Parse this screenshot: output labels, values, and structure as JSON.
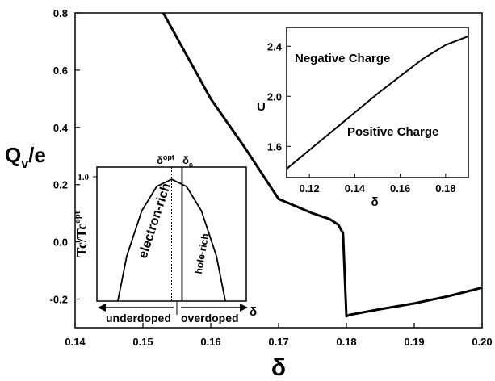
{
  "chart_data": [
    {
      "type": "line",
      "ylabel_main": "Q",
      "ylabel_sub": "v",
      "ylabel_suffix": "/e",
      "xlabel": "δ",
      "xlim": [
        0.14,
        0.2
      ],
      "ylim": [
        -0.3,
        0.8
      ],
      "x_ticks": [
        {
          "value": 0.14,
          "label": "0.14"
        },
        {
          "value": 0.15,
          "label": "0.15"
        },
        {
          "value": 0.16,
          "label": "0.16"
        },
        {
          "value": 0.17,
          "label": "0.17"
        },
        {
          "value": 0.18,
          "label": "0.18"
        },
        {
          "value": 0.19,
          "label": "0.19"
        },
        {
          "value": 0.2,
          "label": "0.20"
        }
      ],
      "y_ticks": [
        {
          "value": -0.2,
          "label": "-0.2"
        },
        {
          "value": 0.0,
          "label": "0.0"
        },
        {
          "value": 0.2,
          "label": "0.2"
        },
        {
          "value": 0.4,
          "label": "0.4"
        },
        {
          "value": 0.6,
          "label": "0.6"
        },
        {
          "value": 0.8,
          "label": "0.8"
        }
      ],
      "series": [
        {
          "x": [
            0.153,
            0.16,
            0.165,
            0.17,
            0.1725,
            0.175,
            0.1775,
            0.1788,
            0.1795,
            0.18,
            0.1805,
            0.185,
            0.19,
            0.195,
            0.2
          ],
          "y": [
            0.8,
            0.5,
            0.33,
            0.15,
            0.125,
            0.1,
            0.08,
            0.06,
            0.03,
            -0.26,
            -0.255,
            -0.235,
            -0.215,
            -0.19,
            -0.16
          ]
        }
      ]
    },
    {
      "type": "line",
      "ylabel": "U",
      "xlabel": "δ",
      "xlim": [
        0.11,
        0.19
      ],
      "ylim": [
        1.35,
        2.55
      ],
      "x_ticks": [
        {
          "value": 0.12,
          "label": "0.12"
        },
        {
          "value": 0.14,
          "label": "0.14"
        },
        {
          "value": 0.16,
          "label": "0.16"
        },
        {
          "value": 0.18,
          "label": "0.18"
        }
      ],
      "y_ticks": [
        {
          "value": 1.6,
          "label": "1.6"
        },
        {
          "value": 2.0,
          "label": "2.0"
        },
        {
          "value": 2.4,
          "label": "2.4"
        }
      ],
      "annotations": [
        "Negative Charge",
        "Positive Charge"
      ],
      "series": [
        {
          "x": [
            0.11,
            0.12,
            0.13,
            0.14,
            0.15,
            0.16,
            0.17,
            0.18,
            0.19
          ],
          "y": [
            1.42,
            1.57,
            1.72,
            1.87,
            2.02,
            2.16,
            2.3,
            2.41,
            2.48
          ]
        }
      ]
    },
    {
      "type": "line",
      "ylabel_main": "Tc/Tc",
      "ylabel_sup": "opt",
      "top_label_opt": "δ",
      "top_label_opt_sup": "opt",
      "top_label_c": "δ",
      "top_label_c_sub": "c",
      "x_label": "δ",
      "y_tick": {
        "value": 1.0,
        "label": "1.0"
      },
      "xlim": [
        0.0,
        1.0
      ],
      "ylim": [
        0.0,
        1.1
      ],
      "opt_position": 0.5,
      "c_position": 0.57,
      "region_left": "electron-rich",
      "region_right": "hole-rich",
      "arrow_left": "underdoped",
      "arrow_right": "overdoped",
      "series": [
        {
          "x": [
            0.14,
            0.2,
            0.3,
            0.4,
            0.5,
            0.6,
            0.7,
            0.8,
            0.86
          ],
          "y": [
            0.0,
            0.37,
            0.74,
            0.94,
            1.0,
            0.94,
            0.74,
            0.37,
            0.0
          ]
        }
      ]
    }
  ]
}
